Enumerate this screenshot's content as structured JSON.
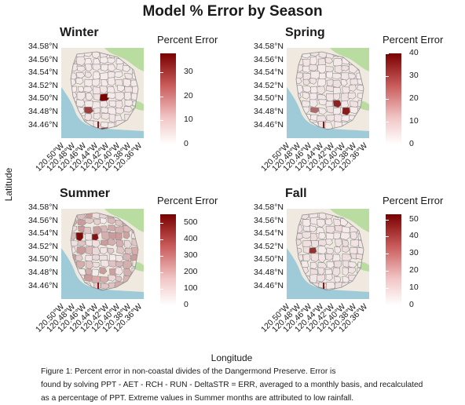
{
  "title": "Model % Error by Season",
  "axes": {
    "ylabel": "Latitude",
    "xlabel": "Longitude",
    "lat_ticks": [
      "34.58°N",
      "34.56°N",
      "34.54°N",
      "34.52°N",
      "34.50°N",
      "34.48°N",
      "34.46°N"
    ],
    "lon_ticks": [
      "120.50°W",
      "120.48°W",
      "120.46°W",
      "120.44°W",
      "120.42°W",
      "120.40°W",
      "120.38°W",
      "120.36°W"
    ]
  },
  "panels": [
    {
      "title": "Winter",
      "legend_title": "Percent Error",
      "legend_ticks": [
        0,
        10,
        20,
        30
      ],
      "max": 38,
      "intensity": 0.04
    },
    {
      "title": "Spring",
      "legend_title": "Percent Error",
      "legend_ticks": [
        0,
        10,
        20,
        30,
        40
      ],
      "max": 40,
      "intensity": 0.05
    },
    {
      "title": "Summer",
      "legend_title": "Percent Error",
      "legend_ticks": [
        0,
        100,
        200,
        300,
        400,
        500
      ],
      "max": 550,
      "intensity": 0.35
    },
    {
      "title": "Fall",
      "legend_title": "Percent Error",
      "legend_ticks": [
        0,
        10,
        20,
        30,
        40,
        50
      ],
      "max": 53,
      "intensity": 0.07
    }
  ],
  "colors": {
    "low": "#ffffff",
    "high": "#7a0000",
    "water": "#9fcad7",
    "land": "#efe9df",
    "vegetation": "#b9dca0",
    "boundary": "#8f8f8f"
  },
  "caption": [
    "Figure 1: Percent error in non-coastal divides of the Dangermond Preserve. Error is",
    "found by solving PPT - AET - RCH - RUN - DeltaSTR = ERR, averaged to a monthly basis, and recalculated",
    "as a percentage of PPT. Extreme values in Summer months are attributed to low rainfall."
  ]
}
